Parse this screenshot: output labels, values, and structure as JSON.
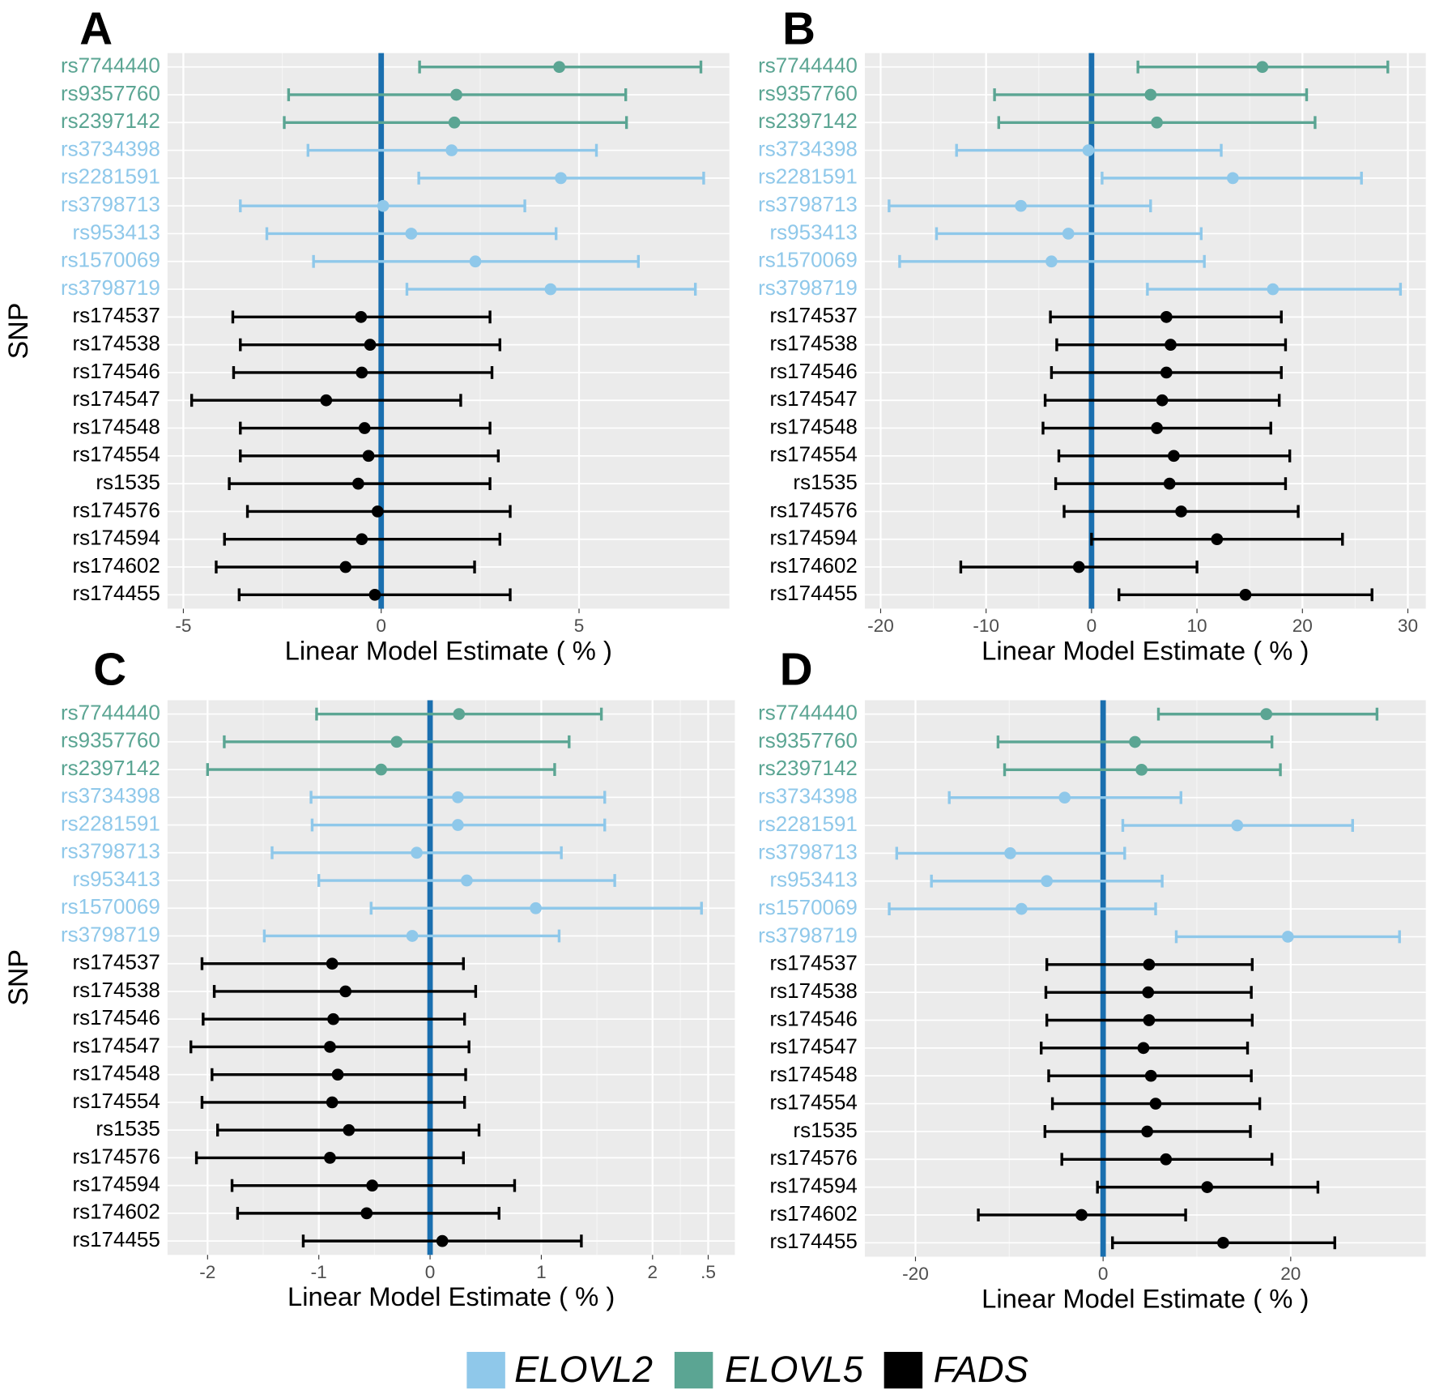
{
  "chart_data": [
    {
      "type": "forest",
      "label": "A",
      "ylabel": "SNP",
      "xlabel": "Linear Model Estimate ( % )",
      "xlim": [
        -5.4,
        8.8
      ],
      "xticks": [
        -5,
        0,
        5
      ],
      "refline": 0,
      "refline_color": "#1a6faf",
      "grid": true,
      "categories": [
        "rs7744440",
        "rs9357760",
        "rs2397142",
        "rs3734398",
        "rs2281591",
        "rs3798713",
        "rs953413",
        "rs1570069",
        "rs3798719",
        "rs174537",
        "rs174538",
        "rs174546",
        "rs174547",
        "rs174548",
        "rs174554",
        "rs1535",
        "rs174576",
        "rs174594",
        "rs174602",
        "rs174455"
      ],
      "groups": [
        "ELOVL5",
        "ELOVL5",
        "ELOVL5",
        "ELOVL2",
        "ELOVL2",
        "ELOVL2",
        "ELOVL2",
        "ELOVL2",
        "ELOVL2",
        "FADS",
        "FADS",
        "FADS",
        "FADS",
        "FADS",
        "FADS",
        "FADS",
        "FADS",
        "FADS",
        "FADS",
        "FADS"
      ],
      "values": [
        4.5,
        1.9,
        1.85,
        1.78,
        4.54,
        0.05,
        0.76,
        2.38,
        4.28,
        -0.51,
        -0.28,
        -0.49,
        -1.39,
        -0.42,
        -0.32,
        -0.58,
        -0.09,
        -0.49,
        -0.9,
        -0.16
      ],
      "lower": [
        0.97,
        -2.34,
        -2.45,
        -1.85,
        0.95,
        -3.56,
        -2.89,
        -1.71,
        0.65,
        -3.75,
        -3.56,
        -3.73,
        -4.79,
        -3.56,
        -3.56,
        -3.84,
        -3.38,
        -3.96,
        -4.17,
        -3.59
      ],
      "upper": [
        8.08,
        6.18,
        6.2,
        5.44,
        8.15,
        3.63,
        4.42,
        6.5,
        7.94,
        2.75,
        3.0,
        2.8,
        2.01,
        2.75,
        2.96,
        2.75,
        3.26,
        3.0,
        2.36,
        3.26
      ]
    },
    {
      "type": "forest",
      "label": "B",
      "xlabel": "Linear Model Estimate ( % )",
      "xlim": [
        -21.5,
        31.7
      ],
      "xticks": [
        -20,
        -10,
        0,
        10,
        20,
        30
      ],
      "refline": 0,
      "refline_color": "#1a6faf",
      "grid": true,
      "categories": [
        "rs7744440",
        "rs9357760",
        "rs2397142",
        "rs3734398",
        "rs2281591",
        "rs3798713",
        "rs953413",
        "rs1570069",
        "rs3798719",
        "rs174537",
        "rs174538",
        "rs174546",
        "rs174547",
        "rs174548",
        "rs174554",
        "rs1535",
        "rs174576",
        "rs174594",
        "rs174602",
        "rs174455"
      ],
      "groups": [
        "ELOVL5",
        "ELOVL5",
        "ELOVL5",
        "ELOVL2",
        "ELOVL2",
        "ELOVL2",
        "ELOVL2",
        "ELOVL2",
        "ELOVL2",
        "FADS",
        "FADS",
        "FADS",
        "FADS",
        "FADS",
        "FADS",
        "FADS",
        "FADS",
        "FADS",
        "FADS",
        "FADS"
      ],
      "values": [
        16.2,
        5.6,
        6.2,
        -0.3,
        13.4,
        -6.7,
        -2.2,
        -3.8,
        17.2,
        7.1,
        7.5,
        7.1,
        6.7,
        6.2,
        7.8,
        7.4,
        8.5,
        11.9,
        -1.2,
        14.6
      ],
      "lower": [
        4.4,
        -9.2,
        -8.8,
        -12.8,
        1.0,
        -19.2,
        -14.7,
        -18.2,
        5.3,
        -3.9,
        -3.3,
        -3.8,
        -4.4,
        -4.6,
        -3.1,
        -3.4,
        -2.6,
        0,
        -12.4,
        2.6
      ],
      "upper": [
        28.1,
        20.4,
        21.2,
        12.3,
        25.6,
        5.6,
        10.4,
        10.7,
        29.3,
        18.0,
        18.4,
        18.0,
        17.8,
        17.0,
        18.8,
        18.4,
        19.6,
        23.8,
        10.0,
        26.6
      ]
    },
    {
      "type": "forest",
      "label": "C",
      "ylabel": "SNP",
      "xlabel": "Linear Model Estimate ( % )",
      "xlim": [
        -2.36,
        2.74
      ],
      "xticks": [
        -2,
        -1,
        0,
        1,
        2,
        {
          "value": 2.5,
          "label": ".5"
        }
      ],
      "refline": 0,
      "refline_color": "#1a6faf",
      "grid": true,
      "categories": [
        "rs7744440",
        "rs9357760",
        "rs2397142",
        "rs3734398",
        "rs2281591",
        "rs3798713",
        "rs953413",
        "rs1570069",
        "rs3798719",
        "rs174537",
        "rs174538",
        "rs174546",
        "rs174547",
        "rs174548",
        "rs174554",
        "rs1535",
        "rs174576",
        "rs174594",
        "rs174602",
        "rs174455"
      ],
      "groups": [
        "ELOVL5",
        "ELOVL5",
        "ELOVL5",
        "ELOVL2",
        "ELOVL2",
        "ELOVL2",
        "ELOVL2",
        "ELOVL2",
        "ELOVL2",
        "FADS",
        "FADS",
        "FADS",
        "FADS",
        "FADS",
        "FADS",
        "FADS",
        "FADS",
        "FADS",
        "FADS",
        "FADS"
      ],
      "values": [
        0.26,
        -0.3,
        -0.44,
        0.25,
        0.25,
        -0.12,
        0.33,
        0.95,
        -0.16,
        -0.88,
        -0.76,
        -0.87,
        -0.9,
        -0.83,
        -0.88,
        -0.73,
        -0.9,
        -0.52,
        -0.57,
        0.11
      ],
      "lower": [
        -1.02,
        -1.85,
        -2.0,
        -1.07,
        -1.06,
        -1.42,
        -1.0,
        -0.53,
        -1.49,
        -2.05,
        -1.94,
        -2.04,
        -2.15,
        -1.96,
        -2.05,
        -1.91,
        -2.1,
        -1.78,
        -1.73,
        -1.14
      ],
      "upper": [
        1.54,
        1.25,
        1.12,
        1.57,
        1.57,
        1.18,
        1.66,
        2.44,
        1.16,
        0.3,
        0.41,
        0.31,
        0.35,
        0.32,
        0.31,
        0.44,
        0.3,
        0.76,
        0.62,
        1.36
      ]
    },
    {
      "type": "forest",
      "label": "D",
      "xlabel": "Linear Model Estimate ( % )",
      "xlim": [
        -25.4,
        34.4
      ],
      "xticks": [
        -20,
        0,
        20
      ],
      "refline": 0,
      "refline_color": "#1a6faf",
      "grid": true,
      "categories": [
        "rs7744440",
        "rs9357760",
        "rs2397142",
        "rs3734398",
        "rs2281591",
        "rs3798713",
        "rs953413",
        "rs1570069",
        "rs3798719",
        "rs174537",
        "rs174538",
        "rs174546",
        "rs174547",
        "rs174548",
        "rs174554",
        "rs1535",
        "rs174576",
        "rs174594",
        "rs174602",
        "rs174455"
      ],
      "groups": [
        "ELOVL5",
        "ELOVL5",
        "ELOVL5",
        "ELOVL2",
        "ELOVL2",
        "ELOVL2",
        "ELOVL2",
        "ELOVL2",
        "ELOVL2",
        "FADS",
        "FADS",
        "FADS",
        "FADS",
        "FADS",
        "FADS",
        "FADS",
        "FADS",
        "FADS",
        "FADS",
        "FADS"
      ],
      "values": [
        17.4,
        3.4,
        4.1,
        -4.1,
        14.3,
        -9.9,
        -6.0,
        -8.7,
        19.7,
        4.9,
        4.8,
        4.9,
        4.3,
        5.1,
        5.6,
        4.7,
        6.7,
        11.1,
        -2.3,
        12.8
      ],
      "lower": [
        5.9,
        -11.2,
        -10.5,
        -16.4,
        2.1,
        -22.0,
        -18.3,
        -22.8,
        7.8,
        -6.0,
        -6.1,
        -6.0,
        -6.6,
        -5.8,
        -5.4,
        -6.2,
        -4.4,
        -0.6,
        -13.3,
        1.0
      ],
      "upper": [
        29.2,
        18.0,
        18.9,
        8.3,
        26.6,
        2.3,
        6.3,
        5.6,
        31.6,
        15.9,
        15.8,
        15.9,
        15.4,
        15.8,
        16.7,
        15.7,
        18.0,
        22.9,
        8.8,
        24.7
      ]
    }
  ],
  "legend": {
    "items": [
      {
        "name": "ELOVL2",
        "color": "#8fc8ea"
      },
      {
        "name": "ELOVL5",
        "color": "#5ba593"
      },
      {
        "name": "FADS",
        "color": "#000000"
      }
    ]
  }
}
